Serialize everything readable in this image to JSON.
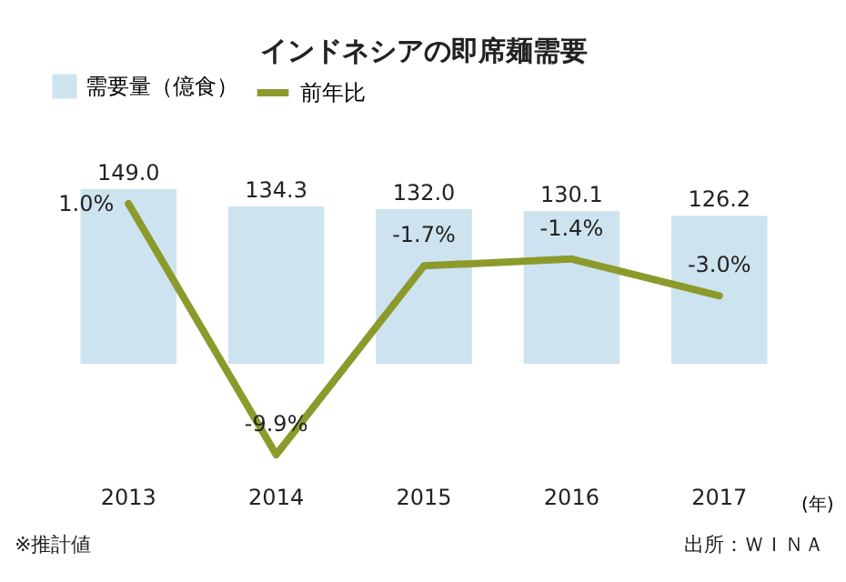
{
  "chart_data": {
    "type": "bar",
    "title": "インドネシアの即席麺需要",
    "categories": [
      "2013",
      "2014",
      "2015",
      "2016",
      "2017"
    ],
    "xlabel": "(年)",
    "series": [
      {
        "name": "需要量（億食）",
        "color": "#cde3ef",
        "values": [
          149.0,
          134.3,
          132.0,
          130.1,
          126.2
        ],
        "value_labels": [
          "149.0",
          "134.3",
          "132.0",
          "130.1",
          "126.2"
        ]
      },
      {
        "name": "前年比",
        "type": "line",
        "axis": "y2",
        "color": "#8c9a2c",
        "values": [
          1.0,
          -9.9,
          -1.7,
          -1.4,
          -3.0
        ],
        "value_labels": [
          "1.0%",
          "-9.9%",
          "-1.7%",
          "-1.4%",
          "-3.0%"
        ]
      }
    ],
    "data_labels": true,
    "legend": "top",
    "annotations": [
      "※推計値",
      "出所：ＷＩＮＡ"
    ]
  }
}
